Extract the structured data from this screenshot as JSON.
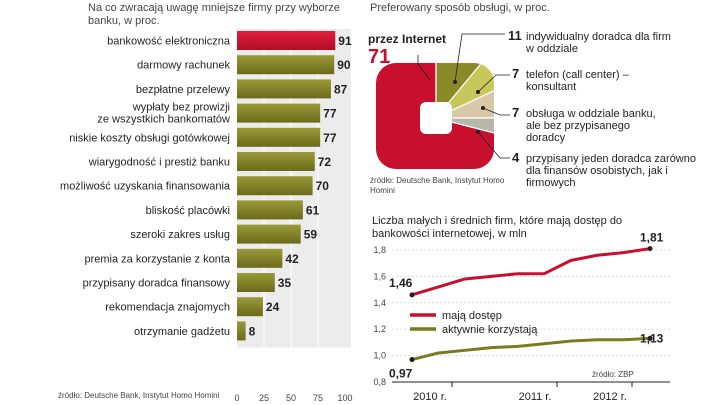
{
  "left_chart": {
    "title": "Na co zwracają uwagę mniejsze firmy przy wyborze banku, w proc.",
    "source": "źródło: Deutsche Bank, Instytut Homo Homini",
    "ticks": [
      "0",
      "25",
      "50",
      "75",
      "100"
    ]
  },
  "pie_chart": {
    "title": "Preferowany sposób obsługi, w proc.",
    "source": "źródło: Deutsche Bank, Instytut Homo Homini",
    "internet_label": "przez Internet",
    "internet_value": "71",
    "notes": [
      {
        "value": "11",
        "label": "indywidualny doradca dla firm w oddziale"
      },
      {
        "value": "7",
        "label": "telefon (call center) – konsultant"
      },
      {
        "value": "7",
        "label": "obsługa w oddziale banku, ale bez przypisanego doradcy"
      },
      {
        "value": "4",
        "label": "przypisany jeden doradca zarówno dla finansów osobistych, jak i firmowych"
      }
    ]
  },
  "line_chart": {
    "title": "Liczba małych i średnich firm, które mają dostęp do bankowości internetowej, w mln",
    "source": "źródło: ZBP",
    "start_labels": {
      "dostep": "1,46",
      "korzysta": "0,97"
    },
    "end_labels": {
      "dostep": "1,81",
      "korzysta": "1,13"
    }
  },
  "chart_data": [
    {
      "type": "bar",
      "orientation": "horizontal",
      "title": "Na co zwracają uwagę mniejsze firmy przy wyborze banku, w proc.",
      "categories": [
        "bankowość elektroniczna",
        "darmowy rachunek",
        "bezpłatne przelewy",
        "wypłaty bez prowizji ze wszystkich bankomatów",
        "niskie koszty obsługi gotówkowej",
        "wiarygodność i prestiż banku",
        "możliwość uzyskania finansowania",
        "bliskość placówki",
        "szeroki zakres usług",
        "premia za korzystanie z konta",
        "przypisany doradca finansowy",
        "rekomendacja znajomych",
        "otrzymanie gadżetu"
      ],
      "values": [
        91,
        90,
        87,
        77,
        77,
        72,
        70,
        61,
        59,
        42,
        35,
        24,
        8
      ],
      "xlim": [
        0,
        100
      ],
      "colors": {
        "first": "#c8102e",
        "rest": "#7a7a1f"
      }
    },
    {
      "type": "pie",
      "title": "Preferowany sposób obsługi, w proc.",
      "labels": [
        "przez Internet",
        "indywidualny doradca dla firm w oddziale",
        "telefon (call center) – konsultant",
        "obsługa w oddziale banku, ale bez przypisanego doradcy",
        "przypisany jeden doradca zarówno dla finansów osobistych, jak i firmowych"
      ],
      "values": [
        71,
        11,
        7,
        7,
        4
      ],
      "colors": [
        "#c8102e",
        "#8a8a2a",
        "#c8c85a",
        "#d8c8a8",
        "#b8b8a8"
      ]
    },
    {
      "type": "line",
      "title": "Liczba małych i średnich firm, które mają dostęp do bankowości internetowej, w mln",
      "x_ticks": [
        "2010 r.",
        "2011 r.",
        "2012 r."
      ],
      "ylim": [
        0.8,
        1.8
      ],
      "y_ticks": [
        "0,8",
        "1,0",
        "1,2",
        "1,4",
        "1,6",
        "1,8"
      ],
      "legend": "inside-middle",
      "grid": true,
      "series": [
        {
          "name": "mają dostęp",
          "color": "#c8102e",
          "values": [
            1.46,
            1.52,
            1.58,
            1.6,
            1.62,
            1.62,
            1.72,
            1.76,
            1.78,
            1.81
          ]
        },
        {
          "name": "aktywnie korzystają",
          "color": "#7a7a1f",
          "values": [
            0.97,
            1.02,
            1.04,
            1.06,
            1.07,
            1.09,
            1.11,
            1.12,
            1.12,
            1.13
          ]
        }
      ]
    }
  ]
}
